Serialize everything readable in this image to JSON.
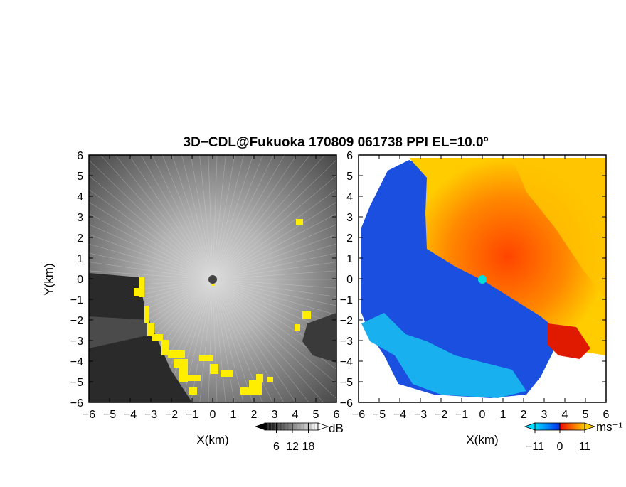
{
  "figure": {
    "title": "3D−CDL@Fukuoka 170809 061738 PPI EL=10.0º"
  },
  "chart_data": [
    {
      "type": "heatmap",
      "panel": "left",
      "xlabel": "X(km)",
      "ylabel": "Y(km)",
      "xlim": [
        -6,
        6
      ],
      "ylim": [
        -6,
        6
      ],
      "xticks": [
        "−6",
        "−5",
        "−4",
        "−3",
        "−2",
        "−1",
        "0",
        "1",
        "2",
        "3",
        "4",
        "5",
        "6"
      ],
      "yticks": [
        "6",
        "5",
        "4",
        "3",
        "2",
        "1",
        "0",
        "−1",
        "−2",
        "−3",
        "−4",
        "−5",
        "−6"
      ],
      "colorbar": {
        "unit": "dB",
        "ticks": [
          "6",
          "12",
          "18"
        ],
        "colors": [
          "#000000",
          "#ffffff"
        ]
      },
      "highlight_color": "#ffee00"
    },
    {
      "type": "heatmap",
      "panel": "right",
      "xlabel": "X(km)",
      "xlim": [
        -6,
        6
      ],
      "ylim": [
        -6,
        6
      ],
      "xticks": [
        "−6",
        "−5",
        "−4",
        "−3",
        "−2",
        "−1",
        "0",
        "1",
        "2",
        "3",
        "4",
        "5",
        "6"
      ],
      "yticks": [
        "6",
        "5",
        "4",
        "3",
        "2",
        "1",
        "0",
        "−1",
        "−2",
        "−3",
        "−4",
        "−5",
        "−6"
      ],
      "colorbar": {
        "unit": "ms⁻¹",
        "ticks": [
          "−11",
          "0",
          "11"
        ],
        "colors": [
          "#00ddff",
          "#0033ee",
          "#ee1100",
          "#ffcc00"
        ]
      }
    }
  ]
}
